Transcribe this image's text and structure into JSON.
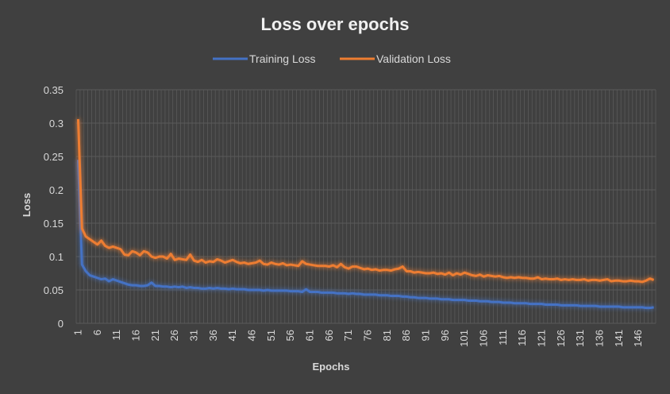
{
  "chart_data": {
    "type": "line",
    "title": "Loss over epochs",
    "xlabel": "Epochs",
    "ylabel": "Loss",
    "ylim": [
      0,
      0.35
    ],
    "y_ticks": [
      "0",
      "0.05",
      "0.1",
      "0.15",
      "0.2",
      "0.25",
      "0.3",
      "0.35"
    ],
    "x_tick_labels": [
      "1",
      "6",
      "11",
      "16",
      "21",
      "26",
      "31",
      "36",
      "41",
      "46",
      "51",
      "56",
      "61",
      "66",
      "71",
      "76",
      "81",
      "86",
      "91",
      "96",
      "101",
      "106",
      "111",
      "116",
      "121",
      "126",
      "131",
      "136",
      "141",
      "146"
    ],
    "x_range": [
      1,
      150
    ],
    "legend_position": "top",
    "grid": "vertical and horizontal gridlines",
    "background_color": "#404040",
    "series": [
      {
        "name": "Training Loss",
        "color": "#4472c4",
        "x": [
          1,
          2,
          3,
          4,
          5,
          6,
          7,
          8,
          9,
          10,
          11,
          12,
          13,
          14,
          15,
          16,
          17,
          18,
          19,
          20,
          21,
          22,
          23,
          24,
          25,
          26,
          27,
          28,
          29,
          30,
          31,
          32,
          33,
          34,
          35,
          36,
          37,
          38,
          39,
          40,
          41,
          42,
          43,
          44,
          45,
          46,
          47,
          48,
          49,
          50,
          51,
          52,
          53,
          54,
          55,
          56,
          57,
          58,
          59,
          60,
          61,
          62,
          63,
          64,
          65,
          66,
          67,
          68,
          69,
          70,
          71,
          72,
          73,
          74,
          75,
          76,
          77,
          78,
          79,
          80,
          81,
          82,
          83,
          84,
          85,
          86,
          87,
          88,
          89,
          90,
          91,
          92,
          93,
          94,
          95,
          96,
          97,
          98,
          99,
          100,
          101,
          102,
          103,
          104,
          105,
          106,
          107,
          108,
          109,
          110,
          111,
          112,
          113,
          114,
          115,
          116,
          117,
          118,
          119,
          120,
          121,
          122,
          123,
          124,
          125,
          126,
          127,
          128,
          129,
          130,
          131,
          132,
          133,
          134,
          135,
          136,
          137,
          138,
          139,
          140,
          141,
          142,
          143,
          144,
          145,
          146,
          147,
          148,
          149,
          150
        ],
        "values": [
          0.245,
          0.088,
          0.078,
          0.072,
          0.07,
          0.068,
          0.066,
          0.067,
          0.063,
          0.066,
          0.064,
          0.062,
          0.06,
          0.058,
          0.057,
          0.057,
          0.056,
          0.056,
          0.057,
          0.061,
          0.056,
          0.056,
          0.055,
          0.055,
          0.054,
          0.055,
          0.054,
          0.055,
          0.053,
          0.054,
          0.053,
          0.053,
          0.052,
          0.052,
          0.053,
          0.052,
          0.053,
          0.052,
          0.052,
          0.051,
          0.052,
          0.051,
          0.051,
          0.051,
          0.05,
          0.05,
          0.05,
          0.05,
          0.049,
          0.05,
          0.049,
          0.049,
          0.049,
          0.049,
          0.049,
          0.048,
          0.048,
          0.048,
          0.047,
          0.051,
          0.047,
          0.047,
          0.047,
          0.046,
          0.046,
          0.046,
          0.046,
          0.045,
          0.045,
          0.045,
          0.044,
          0.045,
          0.044,
          0.044,
          0.043,
          0.043,
          0.043,
          0.043,
          0.042,
          0.042,
          0.042,
          0.041,
          0.041,
          0.041,
          0.04,
          0.04,
          0.039,
          0.039,
          0.038,
          0.038,
          0.038,
          0.037,
          0.037,
          0.037,
          0.036,
          0.036,
          0.036,
          0.035,
          0.035,
          0.035,
          0.035,
          0.034,
          0.034,
          0.034,
          0.033,
          0.033,
          0.033,
          0.032,
          0.032,
          0.032,
          0.031,
          0.031,
          0.031,
          0.03,
          0.03,
          0.03,
          0.03,
          0.029,
          0.029,
          0.029,
          0.029,
          0.028,
          0.028,
          0.028,
          0.028,
          0.027,
          0.027,
          0.027,
          0.027,
          0.027,
          0.026,
          0.026,
          0.026,
          0.026,
          0.026,
          0.025,
          0.025,
          0.025,
          0.025,
          0.025,
          0.025,
          0.024,
          0.024,
          0.024,
          0.024,
          0.024,
          0.024,
          0.023,
          0.023,
          0.024
        ]
      },
      {
        "name": "Validation Loss",
        "color": "#ed7d31",
        "x": [
          1,
          2,
          3,
          4,
          5,
          6,
          7,
          8,
          9,
          10,
          11,
          12,
          13,
          14,
          15,
          16,
          17,
          18,
          19,
          20,
          21,
          22,
          23,
          24,
          25,
          26,
          27,
          28,
          29,
          30,
          31,
          32,
          33,
          34,
          35,
          36,
          37,
          38,
          39,
          40,
          41,
          42,
          43,
          44,
          45,
          46,
          47,
          48,
          49,
          50,
          51,
          52,
          53,
          54,
          55,
          56,
          57,
          58,
          59,
          60,
          61,
          62,
          63,
          64,
          65,
          66,
          67,
          68,
          69,
          70,
          71,
          72,
          73,
          74,
          75,
          76,
          77,
          78,
          79,
          80,
          81,
          82,
          83,
          84,
          85,
          86,
          87,
          88,
          89,
          90,
          91,
          92,
          93,
          94,
          95,
          96,
          97,
          98,
          99,
          100,
          101,
          102,
          103,
          104,
          105,
          106,
          107,
          108,
          109,
          110,
          111,
          112,
          113,
          114,
          115,
          116,
          117,
          118,
          119,
          120,
          121,
          122,
          123,
          124,
          125,
          126,
          127,
          128,
          129,
          130,
          131,
          132,
          133,
          134,
          135,
          136,
          137,
          138,
          139,
          140,
          141,
          142,
          143,
          144,
          145,
          146,
          147,
          148,
          149,
          150
        ],
        "values": [
          0.306,
          0.142,
          0.13,
          0.126,
          0.122,
          0.118,
          0.124,
          0.116,
          0.113,
          0.115,
          0.113,
          0.111,
          0.103,
          0.102,
          0.108,
          0.106,
          0.102,
          0.108,
          0.106,
          0.1,
          0.098,
          0.1,
          0.1,
          0.097,
          0.104,
          0.095,
          0.097,
          0.096,
          0.095,
          0.103,
          0.094,
          0.092,
          0.095,
          0.091,
          0.093,
          0.092,
          0.096,
          0.094,
          0.091,
          0.093,
          0.095,
          0.092,
          0.09,
          0.091,
          0.089,
          0.09,
          0.091,
          0.094,
          0.089,
          0.088,
          0.091,
          0.089,
          0.088,
          0.09,
          0.087,
          0.088,
          0.087,
          0.086,
          0.093,
          0.089,
          0.088,
          0.087,
          0.086,
          0.086,
          0.086,
          0.085,
          0.087,
          0.084,
          0.089,
          0.084,
          0.082,
          0.085,
          0.085,
          0.083,
          0.081,
          0.082,
          0.08,
          0.081,
          0.079,
          0.08,
          0.08,
          0.079,
          0.081,
          0.082,
          0.085,
          0.078,
          0.078,
          0.076,
          0.077,
          0.076,
          0.075,
          0.075,
          0.076,
          0.074,
          0.075,
          0.073,
          0.076,
          0.072,
          0.075,
          0.073,
          0.076,
          0.074,
          0.072,
          0.071,
          0.073,
          0.07,
          0.072,
          0.071,
          0.07,
          0.071,
          0.069,
          0.068,
          0.069,
          0.068,
          0.069,
          0.068,
          0.068,
          0.067,
          0.067,
          0.069,
          0.066,
          0.067,
          0.066,
          0.066,
          0.067,
          0.065,
          0.066,
          0.065,
          0.066,
          0.065,
          0.065,
          0.066,
          0.064,
          0.065,
          0.065,
          0.064,
          0.065,
          0.066,
          0.063,
          0.064,
          0.064,
          0.063,
          0.063,
          0.064,
          0.063,
          0.063,
          0.062,
          0.064,
          0.067,
          0.065
        ]
      }
    ]
  }
}
